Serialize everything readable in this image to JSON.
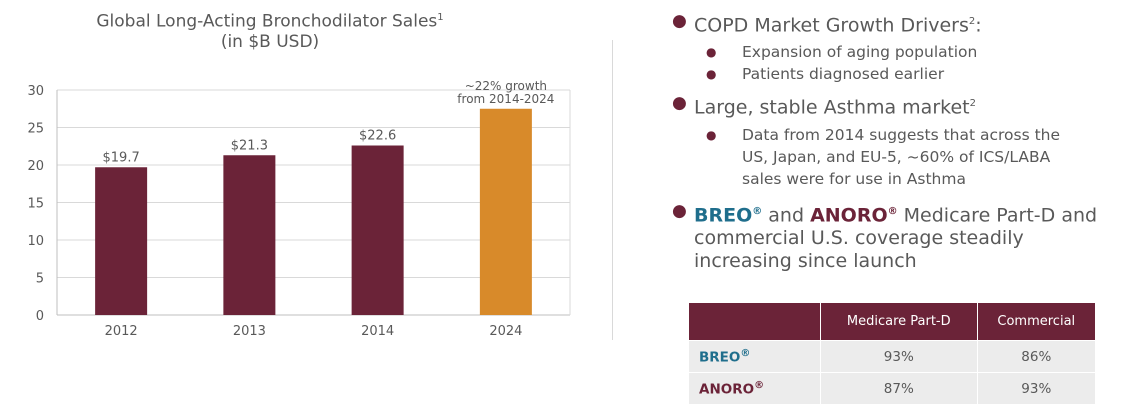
{
  "chart_data": {
    "type": "bar",
    "title_line1": "Global Long-Acting Bronchodilator Sales",
    "title_sup": "1",
    "title_line2": "(in $B USD)",
    "categories": [
      "2012",
      "2013",
      "2014",
      "2024"
    ],
    "values": [
      19.7,
      21.3,
      22.6,
      27.5
    ],
    "data_labels": [
      "$19.7",
      "$21.3",
      "$22.6",
      ""
    ],
    "bar_colors": [
      "#6b2338",
      "#6b2338",
      "#6b2338",
      "#d88a2a"
    ],
    "ylim": [
      0,
      30
    ],
    "yticks": [
      0,
      5,
      10,
      15,
      20,
      25,
      30
    ],
    "annotation_line1": "~22% growth",
    "annotation_line2": "from 2014-2024",
    "grid": true
  },
  "right_panel": {
    "b1": {
      "text": "COPD Market Growth Drivers",
      "sup": "2",
      "tail": ":"
    },
    "b1_sub1": "Expansion of aging population",
    "b1_sub2": "Patients diagnosed earlier",
    "b2": {
      "text": "Large, stable Asthma market",
      "sup": "2"
    },
    "b2_sub1": "Data from 2014 suggests that across the US, Japan, and EU-5, ~60% of ICS/LABA sales were for use in Asthma",
    "b3": {
      "breo": "BREO",
      "and": " and ",
      "anoro": "ANORO",
      "reg": "®",
      "rest": " Medicare Part-D and commercial U.S. coverage steadily increasing since launch"
    }
  },
  "table": {
    "headers": [
      "",
      "Medicare Part-D",
      "Commercial"
    ],
    "rows": [
      {
        "label": "BREO",
        "reg": "®",
        "medicare": "93%",
        "commercial": "86%"
      },
      {
        "label": "ANORO",
        "reg": "®",
        "medicare": "87%",
        "commercial": "93%"
      }
    ]
  },
  "colors": {
    "maroon": "#6b2338",
    "orange": "#d88a2a",
    "blue": "#1f6e8c"
  }
}
